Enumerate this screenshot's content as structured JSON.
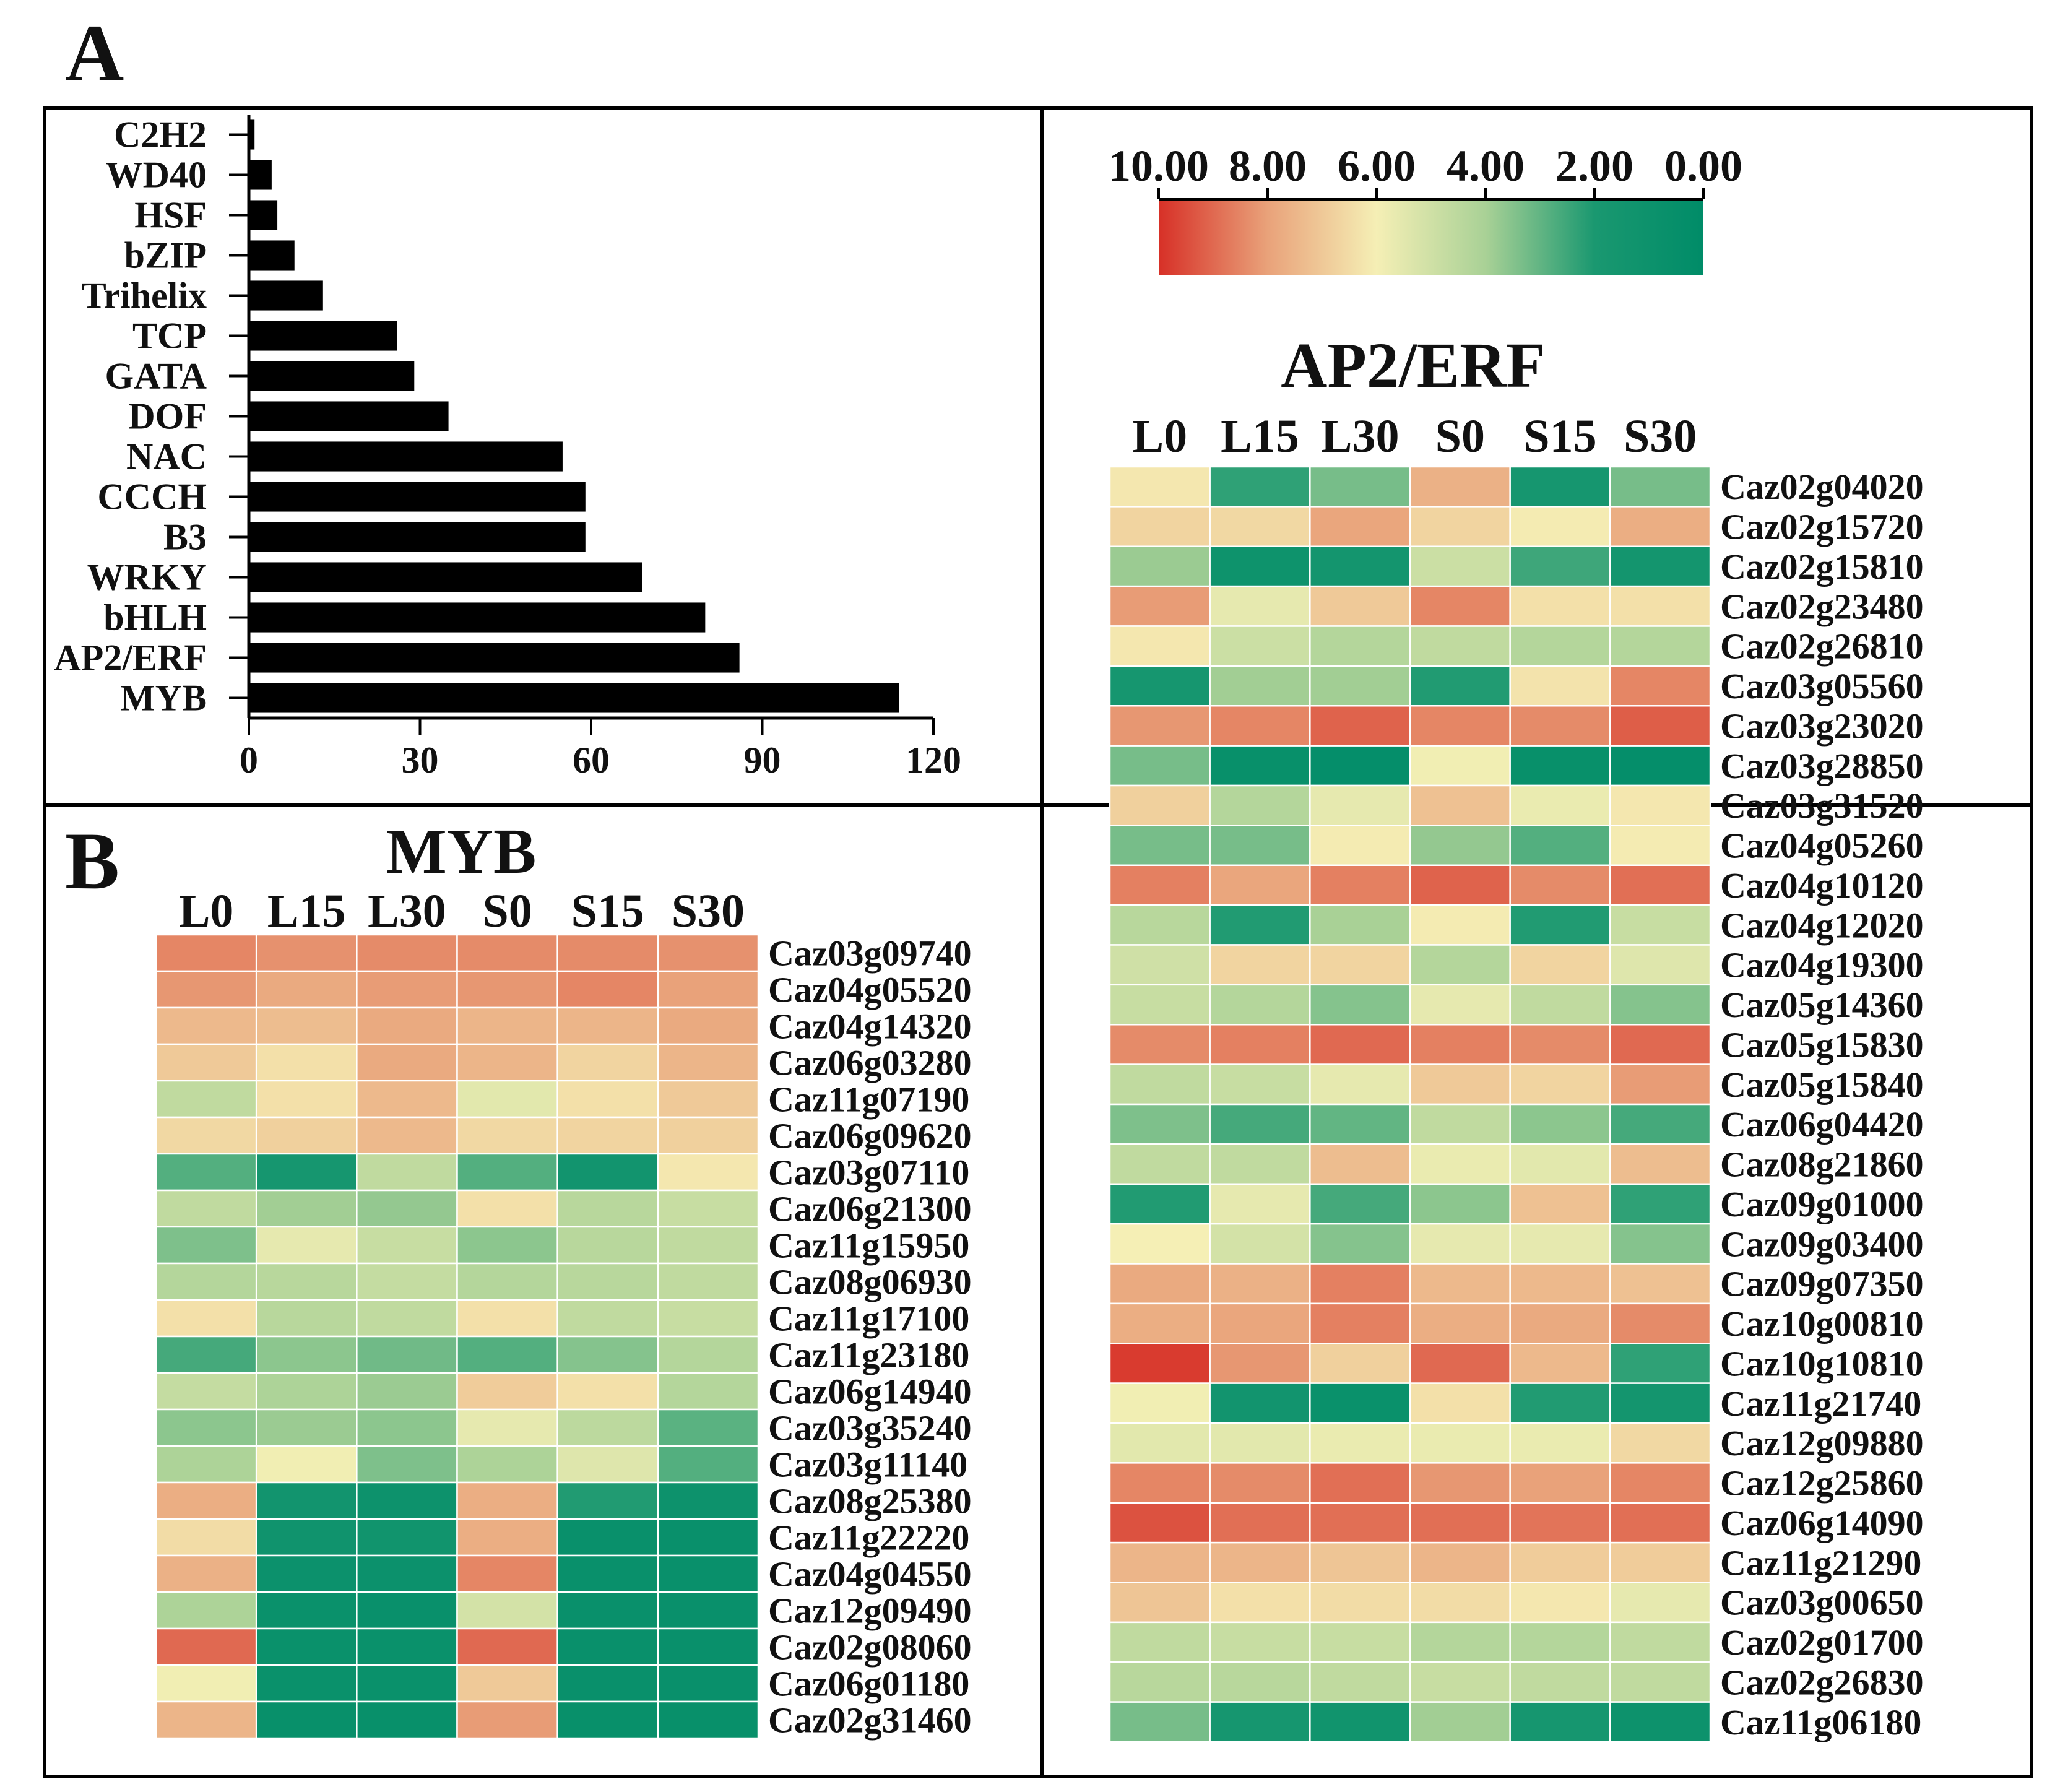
{
  "panel_a_letter": "A",
  "panel_b_letter": "B",
  "chart_data": [
    {
      "type": "bar",
      "orientation": "horizontal",
      "categories": [
        "C2H2",
        "WD40",
        "HSF",
        "bZIP",
        "Trihelix",
        "TCP",
        "GATA",
        "DOF",
        "NAC",
        "CCCH",
        "B3",
        "WRKY",
        "bHLH",
        "AP2/ERF",
        "MYB"
      ],
      "values": [
        1,
        4,
        5,
        8,
        13,
        26,
        29,
        35,
        55,
        59,
        59,
        69,
        80,
        86,
        114
      ],
      "xlim": [
        0,
        120
      ],
      "xticks": [
        0,
        30,
        60,
        90,
        120
      ],
      "bar_color": "#000000",
      "grid": false
    },
    {
      "type": "heatmap",
      "title": "MYB",
      "columns": [
        "L0",
        "L15",
        "L30",
        "S0",
        "S15",
        "S30"
      ],
      "rows": [
        "Caz03g09740",
        "Caz04g05520",
        "Caz04g14320",
        "Caz06g03280",
        "Caz11g07190",
        "Caz06g09620",
        "Caz03g07110",
        "Caz06g21300",
        "Caz11g15950",
        "Caz08g06930",
        "Caz11g17100",
        "Caz11g23180",
        "Caz06g14940",
        "Caz03g35240",
        "Caz03g11140",
        "Caz08g25380",
        "Caz11g22220",
        "Caz04g04550",
        "Caz12g09490",
        "Caz02g08060",
        "Caz06g01180",
        "Caz02g31460"
      ],
      "values": [
        [
          8.5,
          8.3,
          8.4,
          8.4,
          8.4,
          8.3
        ],
        [
          8.2,
          7.8,
          8.1,
          8.2,
          8.5,
          8.0
        ],
        [
          7.4,
          7.3,
          7.8,
          7.5,
          7.5,
          7.8
        ],
        [
          7.0,
          6.4,
          7.8,
          7.5,
          6.7,
          7.5
        ],
        [
          4.6,
          6.4,
          7.4,
          5.5,
          6.4,
          7.0
        ],
        [
          6.6,
          6.8,
          7.4,
          6.6,
          6.7,
          6.8
        ],
        [
          2.8,
          1.7,
          4.6,
          2.8,
          1.4,
          6.2
        ],
        [
          4.6,
          3.9,
          3.7,
          6.4,
          4.4,
          4.8
        ],
        [
          3.4,
          5.6,
          4.8,
          3.6,
          4.4,
          4.6
        ],
        [
          4.3,
          4.4,
          4.7,
          4.3,
          4.4,
          4.6
        ],
        [
          6.4,
          4.4,
          4.6,
          6.4,
          4.6,
          4.8
        ],
        [
          2.6,
          3.6,
          3.2,
          2.8,
          3.5,
          4.3
        ],
        [
          4.7,
          4.1,
          3.8,
          6.9,
          6.4,
          4.3
        ],
        [
          3.6,
          3.8,
          3.6,
          5.6,
          4.5,
          2.9
        ],
        [
          4.1,
          5.9,
          3.4,
          4.1,
          5.4,
          2.8
        ],
        [
          7.7,
          1.4,
          1.0,
          7.7,
          2.1,
          1.0
        ],
        [
          6.5,
          1.2,
          1.3,
          7.7,
          0.7,
          0.7
        ],
        [
          7.6,
          0.9,
          0.9,
          8.5,
          0.7,
          0.7
        ],
        [
          4.1,
          0.8,
          0.7,
          5.1,
          0.7,
          0.7
        ],
        [
          9.0,
          0.8,
          0.8,
          9.0,
          0.7,
          0.7
        ],
        [
          5.9,
          0.8,
          0.8,
          7.0,
          0.7,
          0.7
        ],
        [
          7.5,
          0.6,
          0.6,
          8.1,
          0.6,
          0.6
        ]
      ]
    },
    {
      "type": "heatmap",
      "title": "AP2/ERF",
      "columns": [
        "L0",
        "L15",
        "L30",
        "S0",
        "S15",
        "S30"
      ],
      "rows": [
        "Caz02g04020",
        "Caz02g15720",
        "Caz02g15810",
        "Caz02g23480",
        "Caz02g26810",
        "Caz03g05560",
        "Caz03g23020",
        "Caz03g28850",
        "Caz03g31520",
        "Caz04g05260",
        "Caz04g10120",
        "Caz04g12020",
        "Caz04g19300",
        "Caz05g14360",
        "Caz05g15830",
        "Caz05g15840",
        "Caz06g04420",
        "Caz08g21860",
        "Caz09g01000",
        "Caz09g03400",
        "Caz09g07350",
        "Caz10g00810",
        "Caz10g10810",
        "Caz11g21740",
        "Caz12g09880",
        "Caz12g25860",
        "Caz06g14090",
        "Caz11g21290",
        "Caz03g00650",
        "Caz02g01700",
        "Caz02g26830",
        "Caz11g06180"
      ],
      "values": [
        [
          6.2,
          2.3,
          3.3,
          7.6,
          1.7,
          3.3
        ],
        [
          6.7,
          6.6,
          7.9,
          6.7,
          6.1,
          7.7
        ],
        [
          3.8,
          1.1,
          1.5,
          4.9,
          2.5,
          1.5
        ],
        [
          8.1,
          5.6,
          7.0,
          8.5,
          6.4,
          6.4
        ],
        [
          6.2,
          4.9,
          4.3,
          4.6,
          4.3,
          4.3
        ],
        [
          1.7,
          3.9,
          3.9,
          2.1,
          6.3,
          8.5
        ],
        [
          8.2,
          8.5,
          9.1,
          8.5,
          8.4,
          9.2
        ],
        [
          3.3,
          0.6,
          0.4,
          5.9,
          0.6,
          0.4
        ],
        [
          6.8,
          4.3,
          5.6,
          7.2,
          5.7,
          6.2
        ],
        [
          3.3,
          3.3,
          6.1,
          3.7,
          2.8,
          6.1
        ],
        [
          8.6,
          7.9,
          8.6,
          9.1,
          8.4,
          8.9
        ],
        [
          4.4,
          2.1,
          4.0,
          6.1,
          2.1,
          4.8
        ],
        [
          5.0,
          6.7,
          6.7,
          4.3,
          6.7,
          5.4
        ],
        [
          4.8,
          4.3,
          3.5,
          5.6,
          4.6,
          3.5
        ],
        [
          8.4,
          8.6,
          9.0,
          8.6,
          8.4,
          9.0
        ],
        [
          4.6,
          4.8,
          5.6,
          7.0,
          6.7,
          8.1
        ],
        [
          3.4,
          2.6,
          3.0,
          4.6,
          3.6,
          2.6
        ],
        [
          4.6,
          4.6,
          7.3,
          5.7,
          5.5,
          7.3
        ],
        [
          2.1,
          5.6,
          2.6,
          3.6,
          7.2,
          2.3
        ],
        [
          6.0,
          5.1,
          3.5,
          5.6,
          5.6,
          3.5
        ],
        [
          7.8,
          7.6,
          8.6,
          7.4,
          7.4,
          7.2
        ],
        [
          7.7,
          7.9,
          8.6,
          7.7,
          7.8,
          8.4
        ],
        [
          9.8,
          8.2,
          6.8,
          9.0,
          7.4,
          2.3
        ],
        [
          5.9,
          1.4,
          0.8,
          6.4,
          2.1,
          1.5
        ],
        [
          5.5,
          5.5,
          5.7,
          5.7,
          5.7,
          6.6
        ],
        [
          8.5,
          8.4,
          8.9,
          8.2,
          8.0,
          8.5
        ],
        [
          9.4,
          8.9,
          8.9,
          8.9,
          8.8,
          8.9
        ],
        [
          7.5,
          7.5,
          7.1,
          7.5,
          6.9,
          6.9
        ],
        [
          7.1,
          6.4,
          6.5,
          6.5,
          6.2,
          5.6
        ],
        [
          4.6,
          4.8,
          4.8,
          4.3,
          4.3,
          4.6
        ],
        [
          4.4,
          4.4,
          4.6,
          4.8,
          4.6,
          4.6
        ],
        [
          3.3,
          1.7,
          1.3,
          3.9,
          1.7,
          1.0
        ]
      ]
    }
  ],
  "legend": {
    "labels": [
      "10.00",
      "8.00",
      "6.00",
      "4.00",
      "2.00",
      "0.00"
    ],
    "range": [
      10,
      0
    ],
    "gradient_colors": [
      "#d73027",
      "#e9a27a",
      "#f5efb5",
      "#a9d196",
      "#1a9870",
      "#008c68"
    ]
  }
}
